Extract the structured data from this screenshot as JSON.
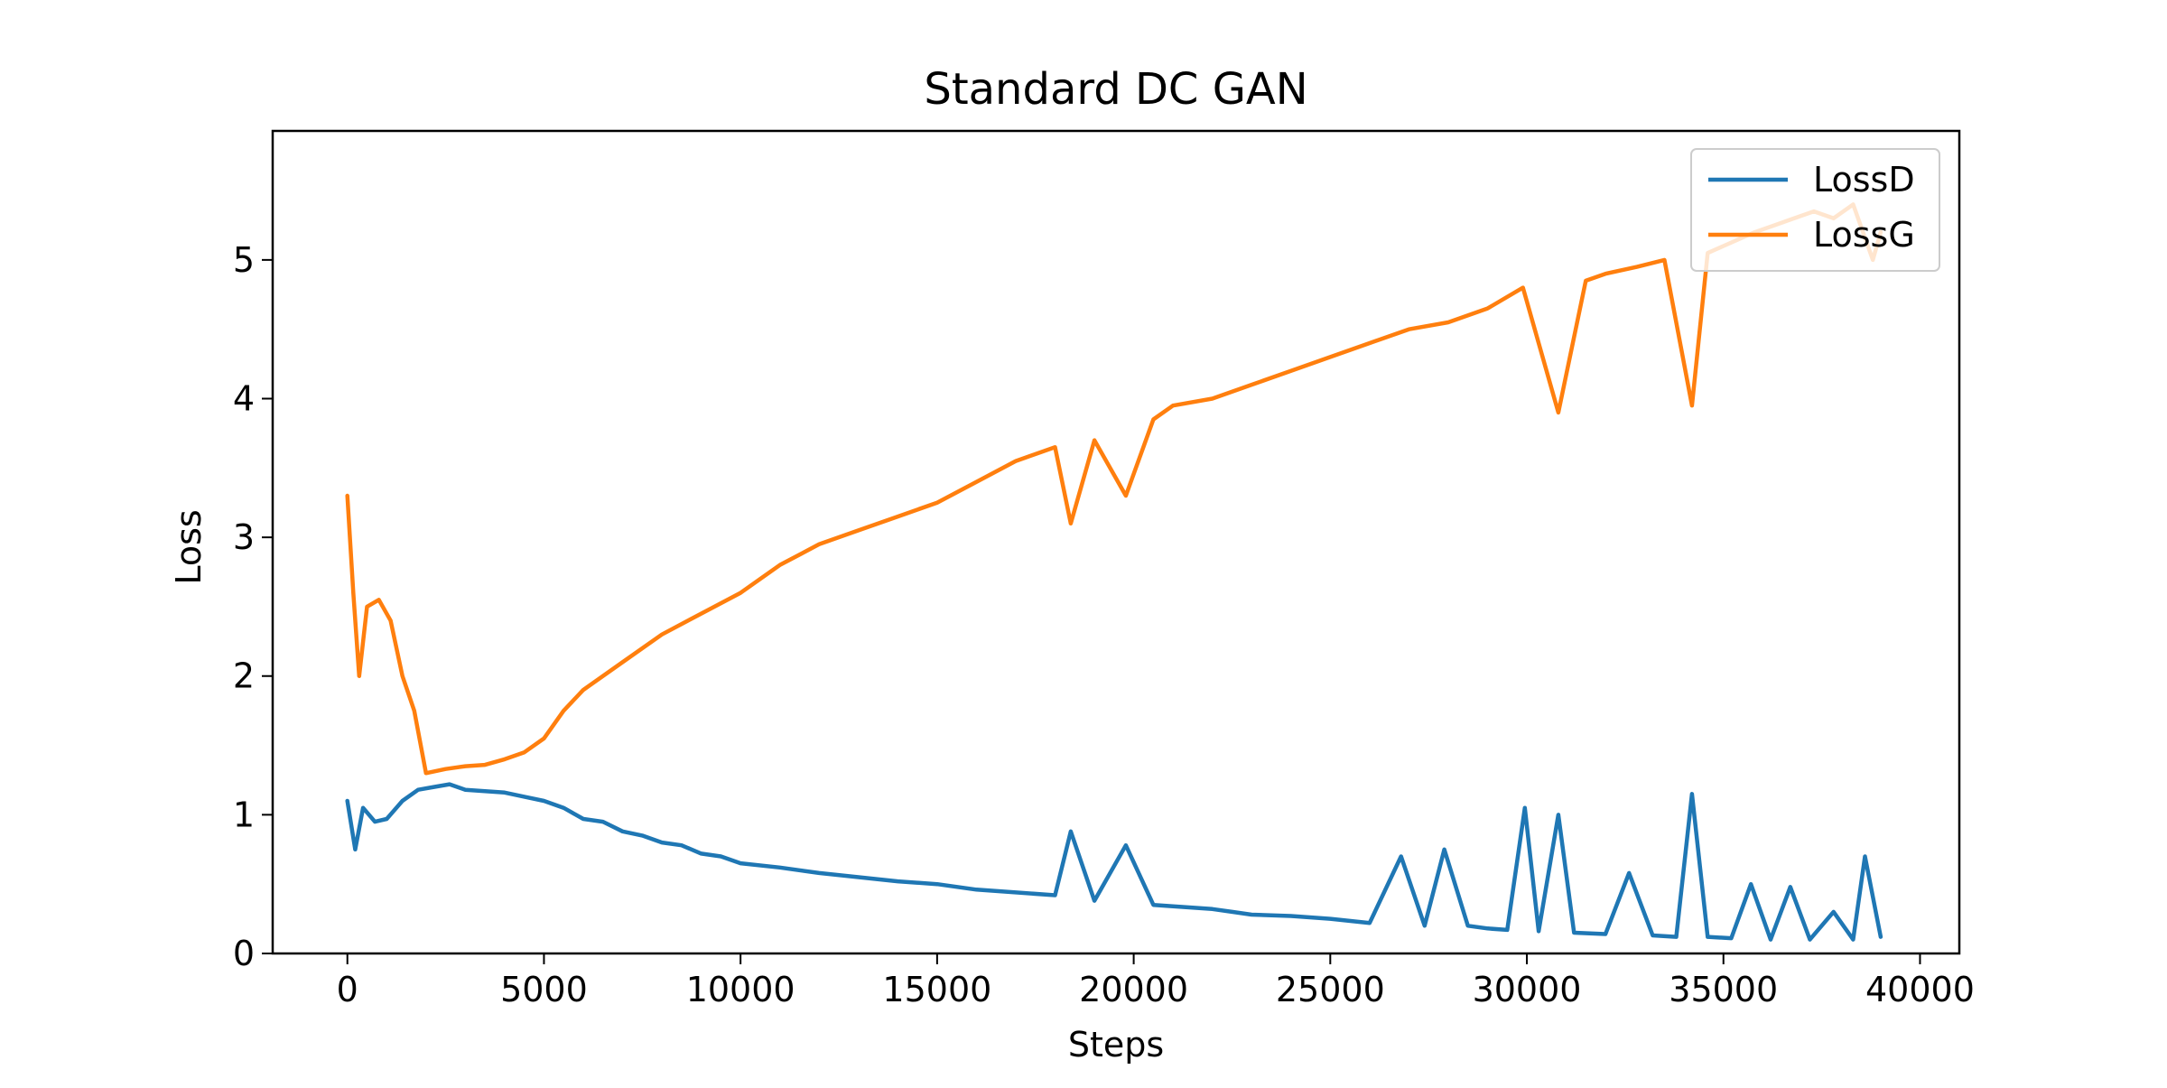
{
  "chart_data": {
    "type": "line",
    "title": "Standard DC GAN",
    "xlabel": "Steps",
    "ylabel": "Loss",
    "xlim": [
      -1900,
      41000
    ],
    "ylim": [
      0,
      5.93
    ],
    "xticks": [
      0,
      5000,
      10000,
      15000,
      20000,
      25000,
      30000,
      35000,
      40000
    ],
    "xtick_labels": [
      "0",
      "5000",
      "10000",
      "15000",
      "20000",
      "25000",
      "30000",
      "35000",
      "40000"
    ],
    "yticks": [
      0,
      1,
      2,
      3,
      4,
      5
    ],
    "ytick_labels": [
      "0",
      "1",
      "2",
      "3",
      "4",
      "5"
    ],
    "grid": false,
    "legend": "top-right",
    "series": [
      {
        "name": "LossD",
        "color": "#1f77b4",
        "x": [
          0,
          200,
          400,
          700,
          1000,
          1400,
          1800,
          2200,
          2600,
          3000,
          3500,
          4000,
          4500,
          5000,
          5500,
          6000,
          6500,
          7000,
          7500,
          8000,
          8500,
          9000,
          9500,
          10000,
          11000,
          12000,
          13000,
          14000,
          15000,
          16000,
          17000,
          18000,
          18400,
          19000,
          19800,
          20500,
          21000,
          22000,
          22500,
          23000,
          24000,
          25000,
          26000,
          26800,
          27400,
          27900,
          28500,
          29000,
          29500,
          29950,
          30300,
          30800,
          31200,
          32000,
          32600,
          33200,
          33800,
          34200,
          34600,
          35200,
          35700,
          36200,
          36700,
          37200,
          37800,
          38300,
          38600,
          39000
        ],
        "y": [
          1.1,
          0.75,
          1.05,
          0.95,
          0.97,
          1.1,
          1.18,
          1.2,
          1.22,
          1.18,
          1.17,
          1.16,
          1.13,
          1.1,
          1.05,
          0.97,
          0.95,
          0.88,
          0.85,
          0.8,
          0.78,
          0.72,
          0.7,
          0.65,
          0.62,
          0.58,
          0.55,
          0.52,
          0.5,
          0.46,
          0.44,
          0.42,
          0.88,
          0.38,
          0.78,
          0.35,
          0.34,
          0.32,
          0.3,
          0.28,
          0.27,
          0.25,
          0.22,
          0.7,
          0.2,
          0.75,
          0.2,
          0.18,
          0.17,
          1.05,
          0.16,
          1.0,
          0.15,
          0.14,
          0.58,
          0.13,
          0.12,
          1.15,
          0.12,
          0.11,
          0.5,
          0.1,
          0.48,
          0.1,
          0.3,
          0.1,
          0.7,
          0.12
        ]
      },
      {
        "name": "LossG",
        "color": "#ff7f0e",
        "x": [
          0,
          150,
          300,
          500,
          800,
          1100,
          1400,
          1700,
          2000,
          2500,
          3000,
          3500,
          4000,
          4500,
          5000,
          5500,
          6000,
          7000,
          8000,
          9000,
          10000,
          11000,
          12000,
          13000,
          14000,
          15000,
          16000,
          17000,
          18000,
          18400,
          19000,
          19800,
          20500,
          21000,
          22000,
          23000,
          24000,
          25000,
          26000,
          27000,
          28000,
          29000,
          29900,
          30800,
          31500,
          32000,
          32800,
          33500,
          34200,
          34600,
          35000,
          35800,
          36300,
          36800,
          37300,
          37800,
          38300,
          38800,
          39000
        ],
        "y": [
          3.3,
          2.6,
          2.0,
          2.5,
          2.55,
          2.4,
          2.0,
          1.75,
          1.3,
          1.33,
          1.35,
          1.36,
          1.4,
          1.45,
          1.55,
          1.75,
          1.9,
          2.1,
          2.3,
          2.45,
          2.6,
          2.8,
          2.95,
          3.05,
          3.15,
          3.25,
          3.4,
          3.55,
          3.65,
          3.1,
          3.7,
          3.3,
          3.85,
          3.95,
          4.0,
          4.1,
          4.2,
          4.3,
          4.4,
          4.5,
          4.55,
          4.65,
          4.8,
          3.9,
          4.85,
          4.9,
          4.95,
          5.0,
          3.95,
          5.05,
          5.1,
          5.2,
          5.25,
          5.3,
          5.35,
          5.3,
          5.4,
          5.0,
          5.2
        ]
      }
    ]
  }
}
